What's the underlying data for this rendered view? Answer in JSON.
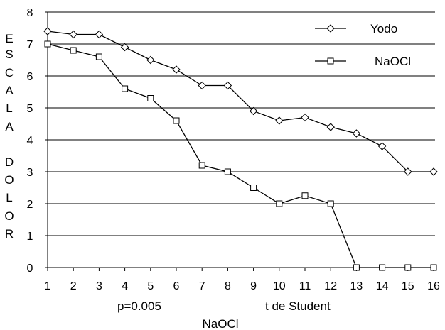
{
  "chart_data": {
    "type": "line",
    "x": [
      1,
      2,
      3,
      4,
      5,
      6,
      7,
      8,
      9,
      10,
      11,
      12,
      13,
      14,
      15,
      16
    ],
    "series": [
      {
        "name": "Yodo",
        "marker": "diamond",
        "values": [
          7.4,
          7.3,
          7.3,
          6.9,
          6.5,
          6.2,
          5.7,
          5.7,
          4.9,
          4.6,
          4.7,
          4.4,
          4.2,
          3.8,
          3.0,
          3.0
        ]
      },
      {
        "name": "NaOCl",
        "marker": "square",
        "values": [
          7.0,
          6.8,
          6.6,
          5.6,
          5.3,
          4.6,
          3.2,
          3.0,
          2.5,
          2.0,
          2.25,
          2.0,
          0.0,
          0.0,
          0.0,
          0.0
        ]
      }
    ],
    "ylabel_letters": [
      "E",
      "S",
      "C",
      "A",
      "L",
      "A",
      "D",
      "O",
      "L",
      "O",
      "R"
    ],
    "xlabel": "NaOCl",
    "annotations": [
      "p=0.005",
      "t de Student"
    ],
    "xlim": [
      1,
      16
    ],
    "ylim": [
      0,
      8
    ],
    "y_ticks": [
      0,
      1,
      2,
      3,
      4,
      5,
      6,
      7,
      8
    ],
    "grid": "horizontal",
    "legend_position": "top-right",
    "colors": {
      "line": "#000000",
      "marker_fill": "#ffffff",
      "grid": "#000000"
    }
  }
}
